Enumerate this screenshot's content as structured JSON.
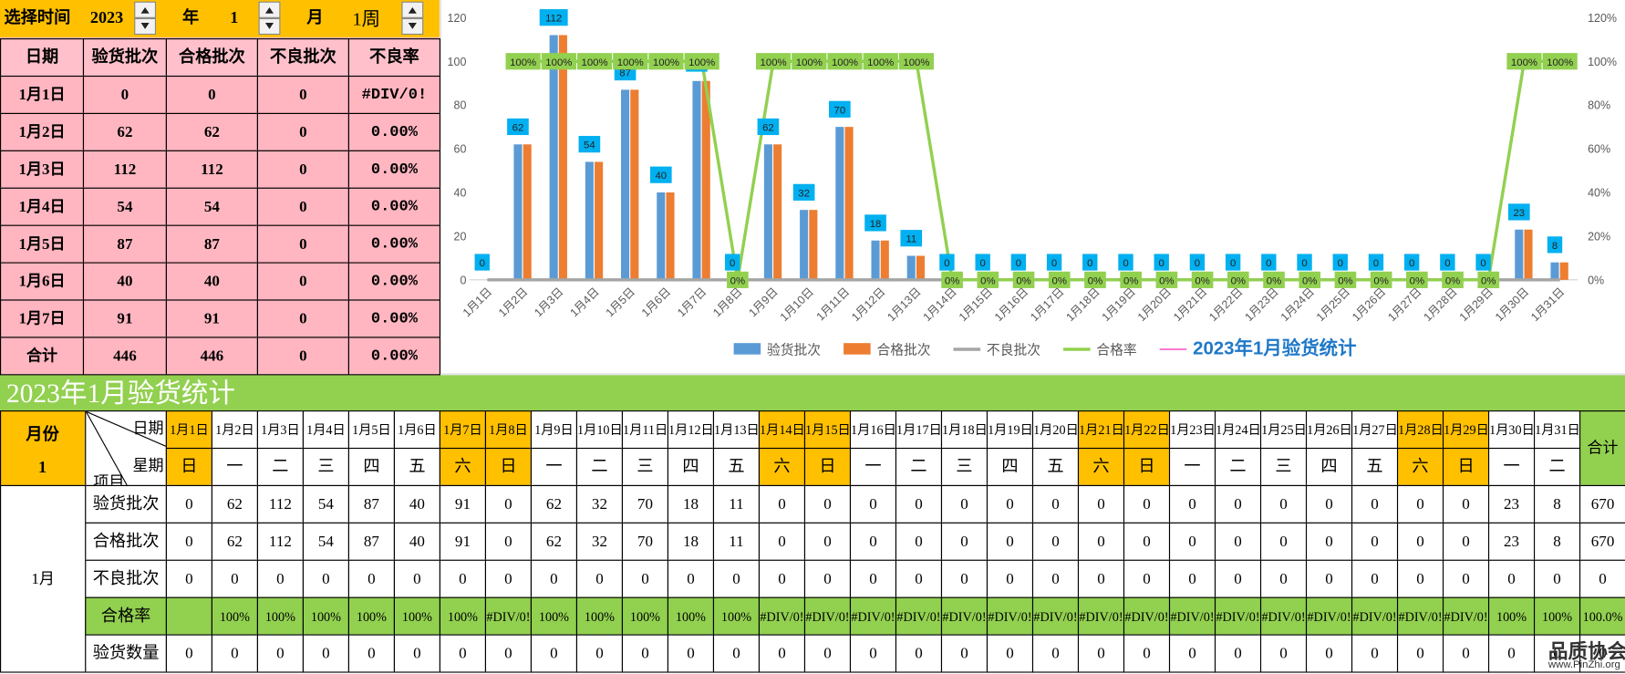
{
  "selector": {
    "label": "选择时间",
    "year": "2023",
    "year_unit": "年",
    "month": "1",
    "month_unit": "月",
    "week": "1周"
  },
  "summary_table": {
    "header": [
      "日期",
      "验货批次",
      "合格批次",
      "不良批次",
      "不良率"
    ],
    "rows": [
      [
        "1月1日",
        "0",
        "0",
        "0",
        "#DIV/0!"
      ],
      [
        "1月2日",
        "62",
        "62",
        "0",
        "0.00%"
      ],
      [
        "1月3日",
        "112",
        "112",
        "0",
        "0.00%"
      ],
      [
        "1月4日",
        "54",
        "54",
        "0",
        "0.00%"
      ],
      [
        "1月5日",
        "87",
        "87",
        "0",
        "0.00%"
      ],
      [
        "1月6日",
        "40",
        "40",
        "0",
        "0.00%"
      ],
      [
        "1月7日",
        "91",
        "91",
        "0",
        "0.00%"
      ],
      [
        "合计",
        "446",
        "446",
        "0",
        "0.00%"
      ]
    ]
  },
  "chart_data": {
    "type": "bar",
    "categories": [
      "1月1日",
      "1月2日",
      "1月3日",
      "1月4日",
      "1月5日",
      "1月6日",
      "1月7日",
      "1月8日",
      "1月9日",
      "1月10日",
      "1月11日",
      "1月12日",
      "1月13日",
      "1月14日",
      "1月15日",
      "1月16日",
      "1月17日",
      "1月18日",
      "1月19日",
      "1月20日",
      "1月21日",
      "1月22日",
      "1月23日",
      "1月24日",
      "1月25日",
      "1月26日",
      "1月27日",
      "1月28日",
      "1月29日",
      "1月30日",
      "1月31日"
    ],
    "series": [
      {
        "name": "验货批次",
        "type": "bar",
        "color": "#5b9bd5",
        "data_labels": true,
        "label_fill": "#00b0f0",
        "values": [
          0,
          62,
          112,
          54,
          87,
          40,
          91,
          0,
          62,
          32,
          70,
          18,
          11,
          0,
          0,
          0,
          0,
          0,
          0,
          0,
          0,
          0,
          0,
          0,
          0,
          0,
          0,
          0,
          0,
          23,
          8
        ]
      },
      {
        "name": "合格批次",
        "type": "bar",
        "color": "#ed7d31",
        "values": [
          0,
          62,
          112,
          54,
          87,
          40,
          91,
          0,
          62,
          32,
          70,
          18,
          11,
          0,
          0,
          0,
          0,
          0,
          0,
          0,
          0,
          0,
          0,
          0,
          0,
          0,
          0,
          0,
          0,
          23,
          8
        ]
      },
      {
        "name": "不良批次",
        "type": "line",
        "color": "#a5a5a5",
        "values": [
          0,
          0,
          0,
          0,
          0,
          0,
          0,
          0,
          0,
          0,
          0,
          0,
          0,
          0,
          0,
          0,
          0,
          0,
          0,
          0,
          0,
          0,
          0,
          0,
          0,
          0,
          0,
          0,
          0,
          0,
          0
        ]
      },
      {
        "name": "合格率",
        "type": "line",
        "axis": "y2",
        "color": "#92d050",
        "data_labels": true,
        "label_fill": "#92d050",
        "values": [
          null,
          100,
          100,
          100,
          100,
          100,
          100,
          0,
          100,
          100,
          100,
          100,
          100,
          0,
          0,
          0,
          0,
          0,
          0,
          0,
          0,
          0,
          0,
          0,
          0,
          0,
          0,
          0,
          0,
          100,
          100
        ],
        "value_labels": [
          null,
          "100%",
          "100%",
          "100%",
          "100%",
          "100%",
          "100%",
          "0%",
          "100%",
          "100%",
          "100%",
          "100%",
          "100%",
          "0%",
          "0%",
          "0%",
          "0%",
          "0%",
          "0%",
          "0%",
          "0%",
          "0%",
          "0%",
          "0%",
          "0%",
          "0%",
          "0%",
          "0%",
          "0%",
          "100%",
          "100%"
        ]
      },
      {
        "name": "2023年1月验货统计",
        "type": "line",
        "color": "#ff66cc",
        "emphasis": true,
        "values": [
          null,
          null,
          null,
          null,
          null,
          null,
          null,
          null,
          null,
          null,
          null,
          null,
          null,
          null,
          null,
          null,
          null,
          null,
          null,
          null,
          null,
          null,
          null,
          null,
          null,
          null,
          null,
          null,
          null,
          null,
          null
        ]
      }
    ],
    "ylim": [
      0,
      120
    ],
    "yticks": [
      0,
      20,
      40,
      60,
      80,
      100,
      120
    ],
    "y2lim": [
      0,
      120
    ],
    "y2ticks": [
      {
        "value": 0,
        "label": "0%"
      },
      {
        "value": 20,
        "label": "20%"
      },
      {
        "value": 40,
        "label": "40%"
      },
      {
        "value": 60,
        "label": "60%"
      },
      {
        "value": 80,
        "label": "80%"
      },
      {
        "value": 100,
        "label": "100%"
      },
      {
        "value": 120,
        "label": "120%"
      }
    ],
    "grid": false,
    "legend": "bottom"
  },
  "report": {
    "title": "2023年1月验货统计",
    "month_header": "月份",
    "month": "1",
    "date_header": "日期",
    "weekday_header": "星期",
    "item_header": "项目",
    "total_header": "合计",
    "row_group": "1月",
    "highlight_color": "#ffc000",
    "highlight_columns": [
      0,
      6,
      7,
      13,
      14,
      20,
      21,
      27,
      28
    ],
    "dates": [
      "1月1日",
      "1月2日",
      "1月3日",
      "1月4日",
      "1月5日",
      "1月6日",
      "1月7日",
      "1月8日",
      "1月9日",
      "1月10日",
      "1月11日",
      "1月12日",
      "1月13日",
      "1月14日",
      "1月15日",
      "1月16日",
      "1月17日",
      "1月18日",
      "1月19日",
      "1月20日",
      "1月21日",
      "1月22日",
      "1月23日",
      "1月24日",
      "1月25日",
      "1月26日",
      "1月27日",
      "1月28日",
      "1月29日",
      "1月30日",
      "1月31日"
    ],
    "weekdays": [
      "日",
      "一",
      "二",
      "三",
      "四",
      "五",
      "六",
      "日",
      "一",
      "二",
      "三",
      "四",
      "五",
      "六",
      "日",
      "一",
      "二",
      "三",
      "四",
      "五",
      "六",
      "日",
      "一",
      "二",
      "三",
      "四",
      "五",
      "六",
      "日",
      "一",
      "二"
    ],
    "rows": [
      {
        "label": "验货批次",
        "cells": [
          0,
          62,
          112,
          54,
          87,
          40,
          91,
          0,
          62,
          32,
          70,
          18,
          11,
          0,
          0,
          0,
          0,
          0,
          0,
          0,
          0,
          0,
          0,
          0,
          0,
          0,
          0,
          0,
          0,
          23,
          8
        ],
        "total": 670
      },
      {
        "label": "合格批次",
        "cells": [
          0,
          62,
          112,
          54,
          87,
          40,
          91,
          0,
          62,
          32,
          70,
          18,
          11,
          0,
          0,
          0,
          0,
          0,
          0,
          0,
          0,
          0,
          0,
          0,
          0,
          0,
          0,
          0,
          0,
          23,
          8
        ],
        "total": 670
      },
      {
        "label": "不良批次",
        "cells": [
          0,
          0,
          0,
          0,
          0,
          0,
          0,
          0,
          0,
          0,
          0,
          0,
          0,
          0,
          0,
          0,
          0,
          0,
          0,
          0,
          0,
          0,
          0,
          0,
          0,
          0,
          0,
          0,
          0,
          0,
          0
        ],
        "total": 0
      },
      {
        "label": "合格率",
        "fill": "#92d050",
        "cells": [
          null,
          "100%",
          "100%",
          "100%",
          "100%",
          "100%",
          "100%",
          "#DIV/0!",
          "100%",
          "100%",
          "100%",
          "100%",
          "100%",
          "#DIV/0!",
          "#DIV/0!",
          "#DIV/0!",
          "#DIV/0!",
          "#DIV/0!",
          "#DIV/0!",
          "#DIV/0!",
          "#DIV/0!",
          "#DIV/0!",
          "#DIV/0!",
          "#DIV/0!",
          "#DIV/0!",
          "#DIV/0!",
          "#DIV/0!",
          "#DIV/0!",
          "#DIV/0!",
          "100%",
          "100%"
        ],
        "total": "100.0%"
      },
      {
        "label": "验货数量",
        "cells": [
          0,
          0,
          0,
          0,
          0,
          0,
          0,
          0,
          0,
          0,
          0,
          0,
          0,
          0,
          0,
          0,
          0,
          0,
          0,
          0,
          0,
          0,
          0,
          0,
          0,
          0,
          0,
          0,
          0,
          0,
          0
        ],
        "total": 0
      }
    ]
  },
  "watermark": {
    "name": "品质协会",
    "url": "www.PinZhi.org"
  }
}
